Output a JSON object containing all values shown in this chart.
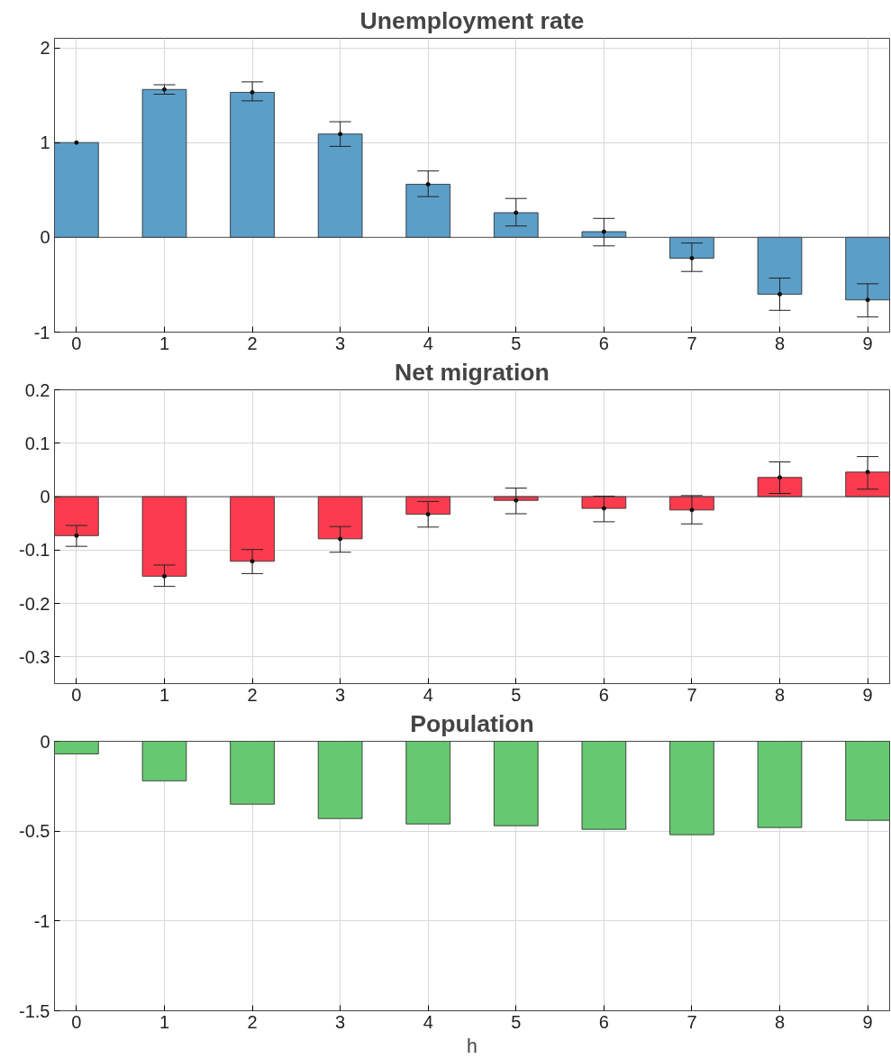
{
  "chart_data": [
    {
      "type": "bar",
      "title": "Unemployment rate",
      "x": [
        0,
        1,
        2,
        3,
        4,
        5,
        6,
        7,
        8,
        9
      ],
      "series": [
        {
          "color": "#5b9fc9",
          "values": [
            1.0,
            1.56,
            1.53,
            1.09,
            0.56,
            0.26,
            0.06,
            -0.22,
            -0.6,
            -0.66
          ],
          "errors": [
            null,
            [
              1.51,
              1.61
            ],
            [
              1.44,
              1.64
            ],
            [
              0.96,
              1.22
            ],
            [
              0.43,
              0.7
            ],
            [
              0.12,
              0.41
            ],
            [
              -0.09,
              0.2
            ],
            [
              -0.36,
              -0.06
            ],
            [
              -0.77,
              -0.43
            ],
            [
              -0.84,
              -0.49
            ]
          ]
        },
        {
          "type": "scatter",
          "color": "#000000",
          "marker": "circle",
          "values": [
            1.0,
            1.56,
            1.53,
            1.09,
            0.56,
            0.26,
            0.06,
            -0.22,
            -0.6,
            -0.66
          ]
        }
      ],
      "xlim": [
        -0.25,
        9.25
      ],
      "ylim": [
        -1,
        2.1
      ],
      "xticks": [
        0,
        1,
        2,
        3,
        4,
        5,
        6,
        7,
        8,
        9
      ],
      "yticks": [
        -1,
        0,
        1,
        2
      ],
      "grid": true
    },
    {
      "type": "bar",
      "title": "Net migration",
      "x": [
        0,
        1,
        2,
        3,
        4,
        5,
        6,
        7,
        8,
        9
      ],
      "series": [
        {
          "color": "#fc3c4e",
          "values": [
            -0.073,
            -0.149,
            -0.121,
            -0.079,
            -0.033,
            -0.007,
            -0.022,
            -0.025,
            0.036,
            0.046
          ],
          "errors": [
            [
              -0.093,
              -0.054
            ],
            [
              -0.168,
              -0.128
            ],
            [
              -0.144,
              -0.099
            ],
            [
              -0.104,
              -0.056
            ],
            [
              -0.057,
              -0.009
            ],
            [
              -0.032,
              0.016
            ],
            [
              -0.047,
              0.001
            ],
            [
              -0.051,
              0.002
            ],
            [
              0.006,
              0.065
            ],
            [
              0.014,
              0.075
            ]
          ]
        },
        {
          "type": "scatter",
          "color": "#000000",
          "marker": "circle",
          "values": [
            -0.073,
            -0.149,
            -0.121,
            -0.079,
            -0.033,
            -0.007,
            -0.022,
            -0.025,
            0.036,
            0.046
          ]
        }
      ],
      "xlim": [
        -0.25,
        9.25
      ],
      "ylim": [
        -0.35,
        0.2
      ],
      "xticks": [
        0,
        1,
        2,
        3,
        4,
        5,
        6,
        7,
        8,
        9
      ],
      "yticks": [
        -0.3,
        -0.2,
        -0.1,
        0,
        0.1,
        0.2
      ],
      "grid": true
    },
    {
      "type": "bar",
      "title": "Population",
      "xlabel": "h",
      "x": [
        0,
        1,
        2,
        3,
        4,
        5,
        6,
        7,
        8,
        9
      ],
      "series": [
        {
          "color": "#66c971",
          "values": [
            -0.07,
            -0.22,
            -0.35,
            -0.43,
            -0.46,
            -0.47,
            -0.49,
            -0.52,
            -0.48,
            -0.44
          ]
        }
      ],
      "xlim": [
        -0.25,
        9.25
      ],
      "ylim": [
        -1.5,
        0
      ],
      "xticks": [
        0,
        1,
        2,
        3,
        4,
        5,
        6,
        7,
        8,
        9
      ],
      "yticks": [
        -1.5,
        -1,
        -0.5,
        0
      ],
      "grid": true
    }
  ]
}
